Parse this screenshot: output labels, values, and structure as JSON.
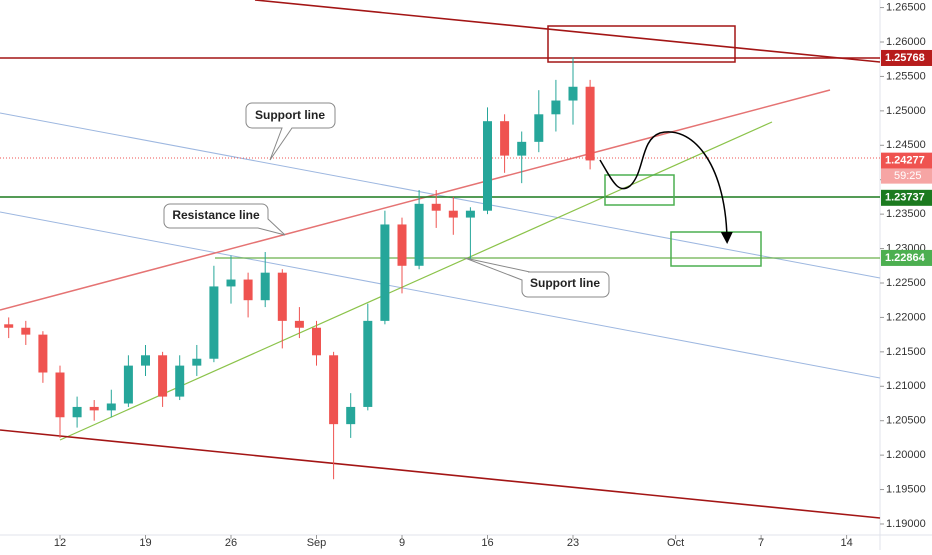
{
  "chart_data": {
    "type": "candlestick",
    "categories": [
      null,
      null,
      null,
      "12",
      null,
      null,
      null,
      null,
      "19",
      null,
      null,
      null,
      null,
      "26",
      null,
      null,
      null,
      null,
      "Sep",
      null,
      null,
      null,
      null,
      "9",
      null,
      null,
      null,
      null,
      "16",
      null,
      null,
      null,
      null,
      "23",
      null,
      null,
      null,
      null,
      null,
      "Oct",
      null,
      null,
      null,
      null,
      "7",
      null,
      null,
      null,
      null,
      "14",
      null
    ],
    "open": [
      1.219,
      1.2185,
      1.2175,
      1.212,
      1.2055,
      1.207,
      1.2065,
      1.2075,
      1.213,
      1.2145,
      1.2085,
      1.213,
      1.214,
      1.2245,
      1.2255,
      1.2225,
      1.2265,
      1.2195,
      1.2185,
      1.2145,
      1.2045,
      1.207,
      1.2195,
      1.2335,
      1.2275,
      1.2365,
      1.2355,
      1.2345,
      1.2355,
      1.2485,
      1.2435,
      1.2455,
      1.2495,
      1.2515,
      1.2535,
      null,
      null,
      null,
      null,
      null,
      null,
      null,
      null,
      null,
      null,
      null,
      null,
      null,
      null,
      null,
      null
    ],
    "high": [
      1.22,
      1.2195,
      1.218,
      1.213,
      1.2085,
      1.208,
      1.2095,
      1.2145,
      1.216,
      1.215,
      1.2145,
      1.216,
      1.2275,
      1.229,
      1.2265,
      1.2295,
      1.227,
      1.2215,
      1.2195,
      1.215,
      1.209,
      1.222,
      1.2355,
      1.2345,
      1.2385,
      1.2385,
      1.2375,
      1.236,
      1.2505,
      1.2495,
      1.247,
      1.253,
      1.2545,
      1.2578,
      1.2545,
      null,
      null,
      null,
      null,
      null,
      null,
      null,
      null,
      null,
      null,
      null,
      null,
      null,
      null,
      null,
      null
    ],
    "low": [
      1.217,
      1.216,
      1.2105,
      1.2025,
      1.204,
      1.205,
      1.2055,
      1.207,
      1.2115,
      1.207,
      1.208,
      1.2115,
      1.2135,
      1.222,
      1.22,
      1.2215,
      1.2155,
      1.217,
      1.213,
      1.1965,
      1.2025,
      1.2065,
      1.219,
      1.2235,
      1.227,
      1.233,
      1.232,
      1.2285,
      1.235,
      1.241,
      1.2395,
      1.244,
      1.247,
      1.248,
      1.2415,
      null,
      null,
      null,
      null,
      null,
      null,
      null,
      null,
      null,
      null,
      null,
      null,
      null,
      null,
      null,
      null
    ],
    "close": [
      1.2185,
      1.2175,
      1.212,
      1.2055,
      1.207,
      1.2065,
      1.2075,
      1.213,
      1.2145,
      1.2085,
      1.213,
      1.214,
      1.2245,
      1.2255,
      1.2225,
      1.2265,
      1.2195,
      1.2185,
      1.2145,
      1.2045,
      1.207,
      1.2195,
      1.2335,
      1.2275,
      1.2365,
      1.2355,
      1.2345,
      1.2355,
      1.2485,
      1.2435,
      1.2455,
      1.2495,
      1.2515,
      1.2535,
      1.2428,
      null,
      null,
      null,
      null,
      null,
      null,
      null,
      null,
      null,
      null,
      null,
      null,
      null,
      null,
      null,
      null
    ],
    "up_color": "#26a69a",
    "down_color": "#ef5350",
    "ylim": [
      1.1884,
      1.2661
    ],
    "yticks": [
      {
        "value": 1.265,
        "label": "1.26500"
      },
      {
        "value": 1.26,
        "label": "1.26000"
      },
      {
        "value": 1.255,
        "label": "1.25500"
      },
      {
        "value": 1.25,
        "label": "1.25000"
      },
      {
        "value": 1.245,
        "label": "1.24500"
      },
      {
        "value": 1.24,
        "label": "1.24000"
      },
      {
        "value": 1.235,
        "label": "1.23500"
      },
      {
        "value": 1.23,
        "label": "1.23000"
      },
      {
        "value": 1.225,
        "label": "1.22500"
      },
      {
        "value": 1.22,
        "label": "1.22000"
      },
      {
        "value": 1.215,
        "label": "1.21500"
      },
      {
        "value": 1.21,
        "label": "1.21000"
      },
      {
        "value": 1.205,
        "label": "1.20500"
      },
      {
        "value": 1.2,
        "label": "1.20000"
      },
      {
        "value": 1.195,
        "label": "1.19500"
      },
      {
        "value": 1.19,
        "label": "1.19000"
      }
    ],
    "grid": false,
    "price_labels": [
      {
        "value": 1.25768,
        "color": "#b71c1c"
      },
      {
        "value": 1.24277,
        "color": "#ef5350"
      },
      {
        "value": 1.23737,
        "color": "#1b7a1f"
      },
      {
        "value": 1.22864,
        "color": "#4caf50"
      }
    ],
    "countdown": "59:25",
    "annotations": [
      "Support line",
      "Resistance line",
      "Support line"
    ]
  }
}
